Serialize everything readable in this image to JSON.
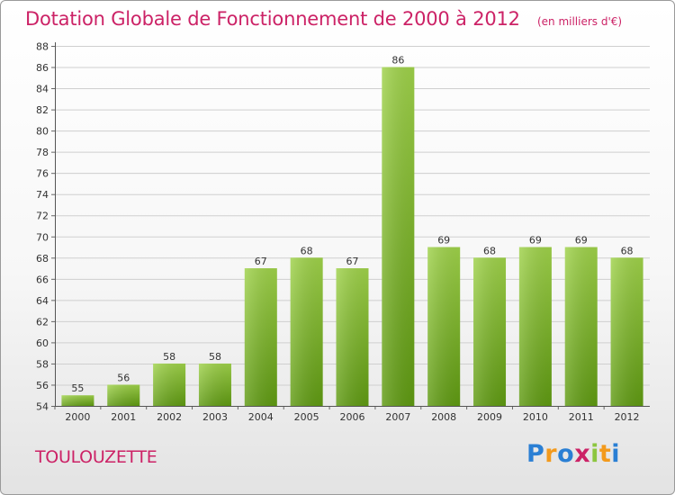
{
  "chart_data": {
    "type": "bar",
    "title": "Dotation Globale de Fonctionnement de 2000 à 2012",
    "subtitle": "(en milliers d'€)",
    "categories": [
      "2000",
      "2001",
      "2002",
      "2003",
      "2004",
      "2005",
      "2006",
      "2007",
      "2008",
      "2009",
      "2010",
      "2011",
      "2012"
    ],
    "values": [
      55,
      56,
      58,
      58,
      67,
      68,
      67,
      86,
      69,
      68,
      69,
      69,
      68
    ],
    "ylim": [
      54,
      88
    ],
    "yticks": [
      54,
      56,
      58,
      60,
      62,
      64,
      66,
      68,
      70,
      72,
      74,
      76,
      78,
      80,
      82,
      84,
      86,
      88
    ],
    "xlabel": "",
    "ylabel": "",
    "grid": true,
    "bar_color": "#7fbf2a"
  },
  "commune": "TOULOUZETTE",
  "logo": {
    "text": "Proxiti",
    "letters": [
      "P",
      "r",
      "o",
      "x",
      "i",
      "t",
      "i"
    ],
    "colors": [
      "#2a7fd4",
      "#f39a1c",
      "#2a7fd4",
      "#cc2266",
      "#8cc63f",
      "#f39a1c",
      "#2a7fd4"
    ]
  }
}
